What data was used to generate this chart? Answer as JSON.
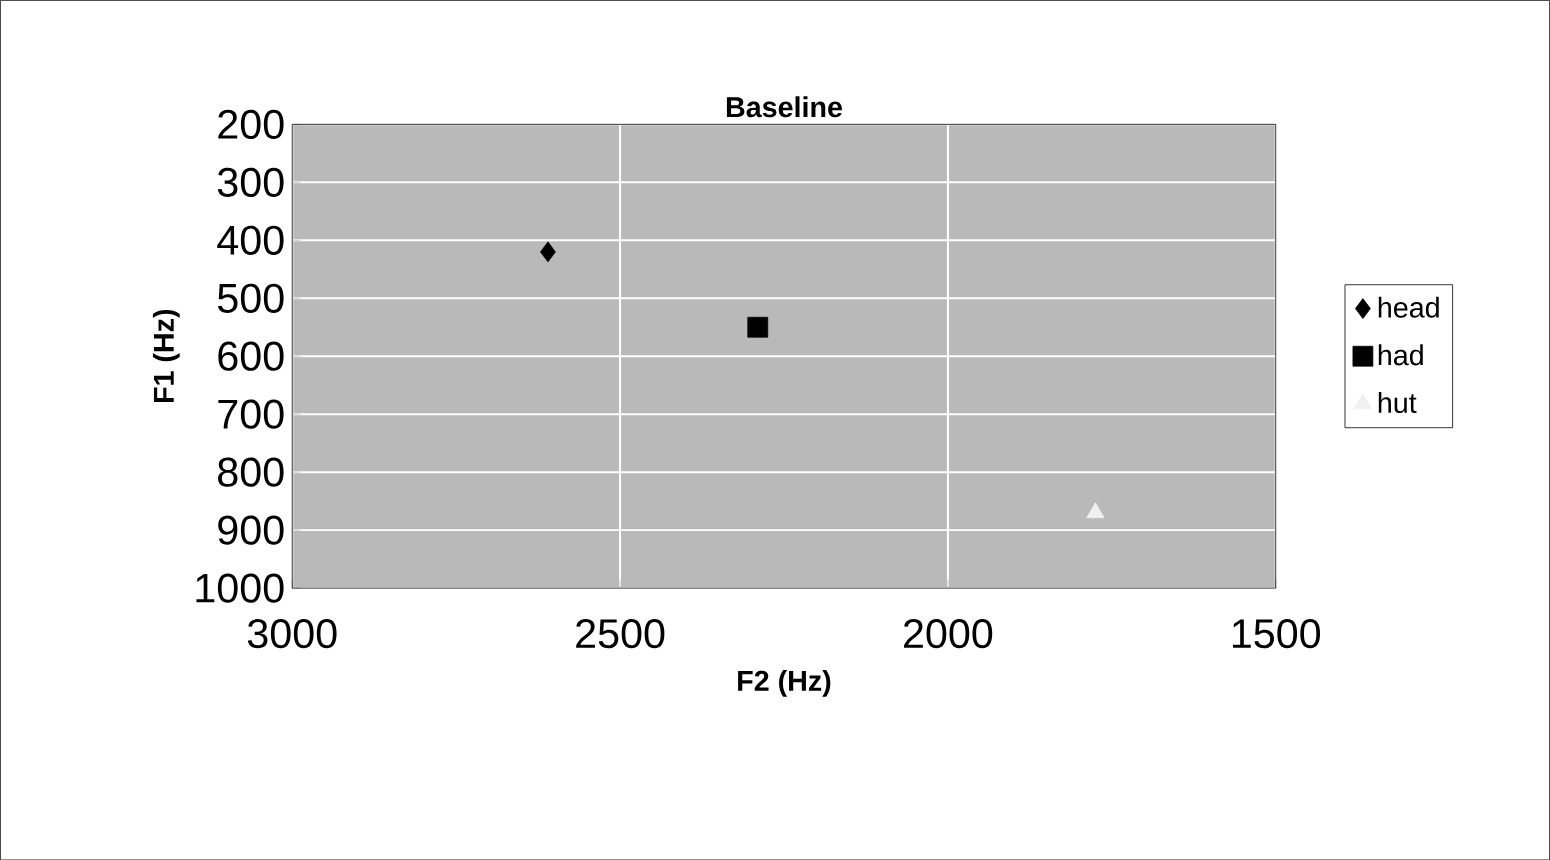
{
  "chart_data": {
    "type": "scatter",
    "title": "Baseline",
    "xlabel": "F2 (Hz)",
    "ylabel": "F1 (Hz)",
    "xlim": [
      3000,
      1500
    ],
    "ylim": [
      1000,
      200
    ],
    "xticks": [
      3000,
      2500,
      2000,
      1500
    ],
    "yticks": [
      200,
      300,
      400,
      500,
      600,
      700,
      800,
      900,
      1000
    ],
    "grid": true,
    "legend": "right",
    "series": [
      {
        "name": "head",
        "color": "#000000",
        "marker": "diamond",
        "x": [
          2610
        ],
        "values": [
          420
        ]
      },
      {
        "name": "had",
        "color": "#000000",
        "marker": "square",
        "x": [
          2290
        ],
        "values": [
          550
        ]
      },
      {
        "name": "hut",
        "color": "#f0f0f0",
        "marker": "triangle",
        "x": [
          1775
        ],
        "values": [
          870
        ]
      }
    ]
  }
}
